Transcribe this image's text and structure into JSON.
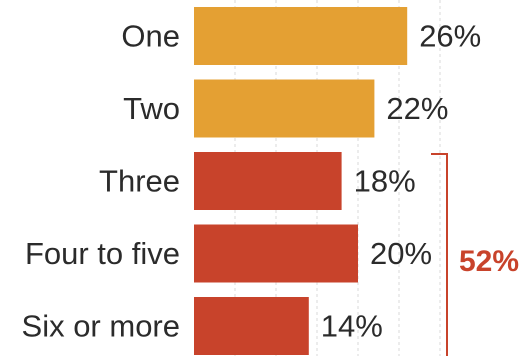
{
  "chart_data": {
    "type": "bar",
    "orientation": "horizontal",
    "categories": [
      "One",
      "Two",
      "Three",
      "Four to five",
      "Six or more"
    ],
    "values": [
      26,
      22,
      18,
      20,
      14
    ],
    "value_labels": [
      "26%",
      "22%",
      "18%",
      "20%",
      "14%"
    ],
    "unit": "%",
    "grid": true,
    "xlim": [
      0,
      30
    ],
    "colors": [
      "#e4a033",
      "#e4a033",
      "#c8432b",
      "#c8432b",
      "#c8432b"
    ],
    "bracket": {
      "categories": [
        "Three",
        "Four to five",
        "Six or more"
      ],
      "label": "52%",
      "color": "#c8432b"
    }
  }
}
